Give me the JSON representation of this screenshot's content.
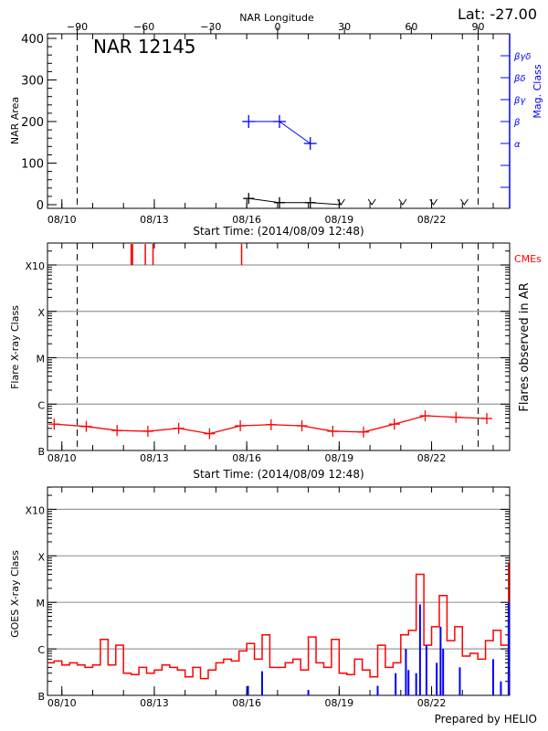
{
  "header": {
    "title": "NAR 12145",
    "latitude": "Lat: -27.00",
    "footer": "Prepared by HELIO"
  },
  "colors": {
    "area": "#000000",
    "mag_class": "#0000ff",
    "flares": "#ff0000",
    "cme": "#ff0000",
    "goes_long": "#ff0000",
    "goes_short": "#0000ff",
    "grid": "#999999"
  },
  "chart_data": [
    {
      "type": "line",
      "title": "NAR 12145",
      "xlabel": "Start Time: (2014/08/09 12:48)",
      "ylabel": "NAR Area",
      "ylabel_right": "Mag. Class",
      "xlabel_top": "NAR Longitude",
      "x_range": [
        "08/09 12:48",
        "08/24 12:48"
      ],
      "x_ticks": [
        "08/10",
        "08/13",
        "08/16",
        "08/19",
        "08/22"
      ],
      "top_ticks": [
        -90,
        -60,
        -30,
        0,
        30,
        60,
        90
      ],
      "ylim": [
        0,
        400
      ],
      "y_ticks": [
        0,
        100,
        200,
        300,
        400
      ],
      "mag_ticks": [
        "",
        "",
        "α",
        "β",
        "βγ",
        "βδ",
        "βγδ"
      ],
      "limb_longitudes": [
        -90,
        90
      ],
      "series": [
        {
          "name": "NAR Area",
          "x": [
            "08/16 01:30",
            "08/17 01:30",
            "08/18 01:30"
          ],
          "y": [
            15,
            5,
            5
          ]
        },
        {
          "x": [
            "08/19 01:30",
            "08/20 01:30",
            "08/21 01:30",
            "08/22 01:30",
            "08/23 01:30"
          ],
          "y": [
            0,
            0,
            0,
            0,
            0
          ],
          "marker": "v"
        },
        {
          "name": "Mag. Class",
          "x": [
            "08/16 01:30",
            "08/17 01:30",
            "08/18 01:30"
          ],
          "y": [
            "β",
            "β",
            "α"
          ]
        }
      ]
    },
    {
      "type": "line",
      "xlabel": "Start Time: (2014/08/09 12:48)",
      "ylabel": "Flare X-ray Class",
      "ylabel_right": "Flares observed in AR",
      "cme_label": "CMEs",
      "y_scale": "log",
      "y_ticks": [
        "B",
        "C",
        "M",
        "X",
        "X10"
      ],
      "grid": true,
      "x_ticks": [
        "08/10",
        "08/13",
        "08/16",
        "08/19",
        "08/22"
      ],
      "series": [
        {
          "x": [
            "08/09 18:00",
            "08/10 19:00",
            "08/11 19:00",
            "08/12 19:00",
            "08/13 19:00",
            "08/14 19:00",
            "08/15 19:00",
            "08/16 19:00",
            "08/17 19:00",
            "08/18 19:00",
            "08/19 19:00",
            "08/20 19:00",
            "08/21 19:00",
            "08/22 19:00",
            "08/23 19:00"
          ],
          "y": [
            3.7e-07,
            3.3e-07,
            2.7e-07,
            2.6e-07,
            3e-07,
            2.3e-07,
            3.4e-07,
            3.6e-07,
            3.4e-07,
            2.6e-07,
            2.5e-07,
            3.7e-07,
            5.6e-07,
            5.2e-07,
            4.9e-07
          ]
        }
      ],
      "cmes": [
        "08/12 06:00",
        "08/12 07:00",
        "08/12 17:00",
        "08/12 23:00",
        "08/15 20:00"
      ]
    },
    {
      "type": "line",
      "ylabel": "GOES X-ray Class",
      "y_scale": "log",
      "y_ticks": [
        "B",
        "C",
        "M",
        "X",
        "X10"
      ],
      "grid": true,
      "x_ticks": [
        "08/10",
        "08/13",
        "08/16",
        "08/19",
        "08/22"
      ],
      "series": [
        {
          "x": [
            "08/09 12:48",
            "08/09 18:00",
            "08/10 00:00",
            "08/10 06:00",
            "08/10 12:00",
            "08/10 18:00",
            "08/11 00:00",
            "08/11 06:00",
            "08/11 12:00",
            "08/11 18:00",
            "08/12 00:00",
            "08/12 06:00",
            "08/12 12:00",
            "08/12 18:00",
            "08/13 00:00",
            "08/13 06:00",
            "08/13 12:00",
            "08/13 18:00",
            "08/14 00:00",
            "08/14 06:00",
            "08/14 12:00",
            "08/14 18:00",
            "08/15 00:00",
            "08/15 06:00",
            "08/15 12:00",
            "08/15 18:00",
            "08/16 00:00",
            "08/16 06:00",
            "08/16 12:00",
            "08/16 18:00",
            "08/17 00:00",
            "08/17 06:00",
            "08/17 12:00",
            "08/17 18:00",
            "08/18 00:00",
            "08/18 06:00",
            "08/18 12:00",
            "08/18 18:00",
            "08/19 00:00",
            "08/19 06:00",
            "08/19 12:00",
            "08/19 18:00",
            "08/20 00:00",
            "08/20 06:00",
            "08/20 12:00",
            "08/20 18:00",
            "08/21 00:00",
            "08/21 06:00",
            "08/21 12:00",
            "08/21 18:00",
            "08/22 00:00",
            "08/22 06:00",
            "08/22 12:00",
            "08/22 18:00",
            "08/23 00:00",
            "08/23 06:00",
            "08/23 12:00",
            "08/23 18:00",
            "08/24 00:00",
            "08/24 06:00",
            "08/24 12:00"
          ],
          "y": [
            5e-07,
            5.5e-07,
            4.5e-07,
            5e-07,
            4.5e-07,
            4e-07,
            4.5e-07,
            1.6e-06,
            4.5e-07,
            1.2e-06,
            3e-07,
            2.8e-07,
            4e-07,
            3e-07,
            3.5e-07,
            4.5e-07,
            4e-07,
            3.5e-07,
            2.5e-07,
            4e-07,
            2.3e-07,
            3.5e-07,
            5e-07,
            6e-07,
            5.5e-07,
            9e-07,
            1.3e-06,
            6e-07,
            2e-06,
            4e-07,
            4e-07,
            5e-07,
            6e-07,
            3.5e-07,
            1.8e-06,
            5e-07,
            4e-07,
            1.6e-06,
            3e-07,
            2.8e-07,
            6e-07,
            3.5e-07,
            2.5e-07,
            1.2e-06,
            4e-07,
            5e-07,
            2e-06,
            2.5e-06,
            4e-05,
            1.2e-06,
            3e-06,
            1.4e-05,
            1.5e-06,
            3e-06,
            7e-07,
            8e-07,
            6e-07,
            1.5e-06,
            2.5e-06,
            1.2e-06,
            7e-05
          ]
        },
        {
          "x": [
            "08/16 01:00",
            "08/16 12:00",
            "08/18 00:00",
            "08/20 06:00",
            "08/20 20:00",
            "08/21 04:00",
            "08/21 06:00",
            "08/21 12:00",
            "08/21 15:00",
            "08/21 20:00",
            "08/22 04:00",
            "08/22 07:00",
            "08/22 09:00",
            "08/22 22:00",
            "08/24 00:00",
            "08/24 06:00",
            "08/24 12:00"
          ],
          "y": [
            1.6e-07,
            3.3e-07,
            1.3e-07,
            1.6e-07,
            3e-07,
            1e-06,
            3.5e-07,
            3e-07,
            9e-06,
            1.2e-06,
            5e-07,
            3e-06,
            1e-06,
            4e-07,
            6e-07,
            2e-07,
            1e-05
          ]
        }
      ]
    }
  ]
}
